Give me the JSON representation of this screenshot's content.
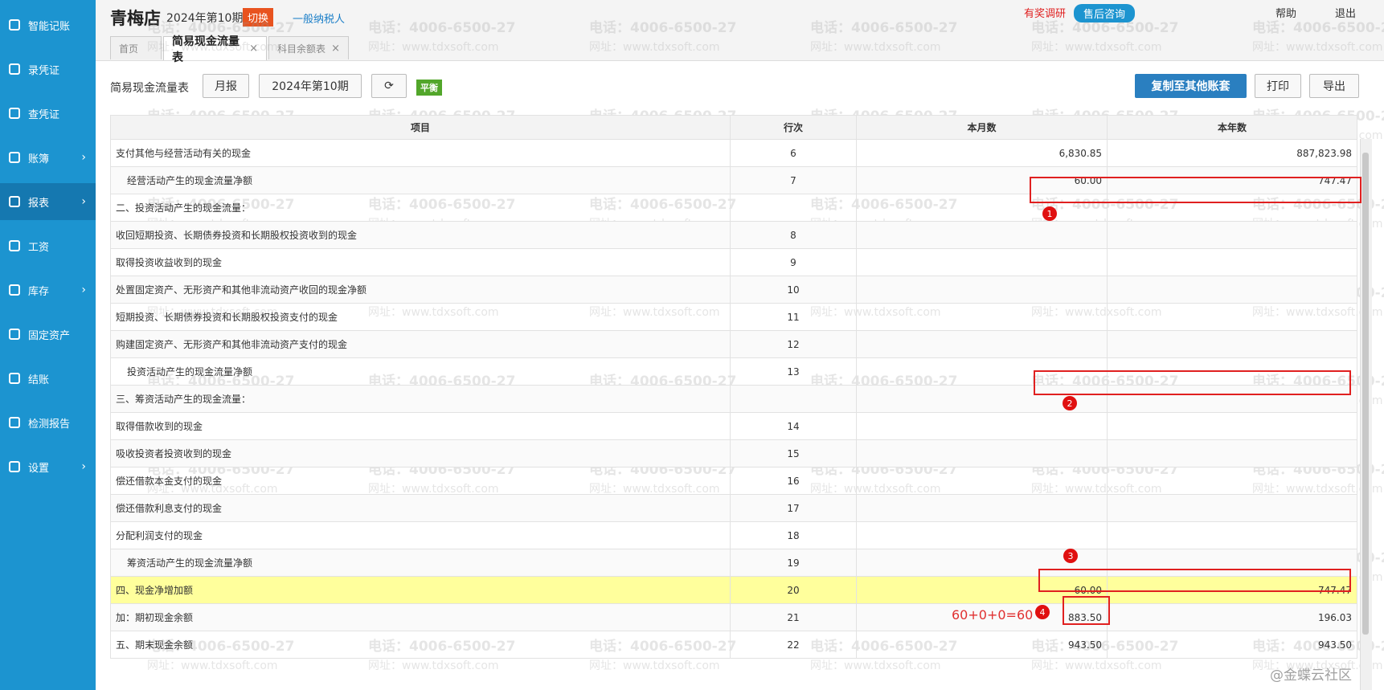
{
  "sidebar": {
    "items": [
      {
        "label": "智能记账"
      },
      {
        "label": "录凭证"
      },
      {
        "label": "查凭证"
      },
      {
        "label": "账簿",
        "expandable": true
      },
      {
        "label": "报表",
        "expandable": true,
        "active": true
      },
      {
        "label": "工资"
      },
      {
        "label": "库存",
        "expandable": true
      },
      {
        "label": "固定资产"
      },
      {
        "label": "结账"
      },
      {
        "label": "检测报告"
      },
      {
        "label": "设置",
        "expandable": true
      }
    ]
  },
  "header": {
    "company": "青梅店",
    "period": "2024年第10期",
    "switch": "切换",
    "taxpayer": "一般纳税人",
    "survey": "有奖调研",
    "support": "售后咨询",
    "help": "帮助",
    "exit": "退出"
  },
  "tabs": [
    {
      "label": "首页"
    },
    {
      "label": "简易现金流量表",
      "active": true,
      "closable": true
    },
    {
      "label": "科目余额表",
      "closable": true
    }
  ],
  "toolbar": {
    "title": "简易现金流量表",
    "report_type": "月报",
    "period": "2024年第10期",
    "status": "平衡",
    "copy": "复制至其他账套",
    "print": "打印",
    "export": "导出"
  },
  "table": {
    "columns": [
      "项目",
      "行次",
      "本月数",
      "本年数"
    ],
    "rows": [
      {
        "item": "支付其他与经营活动有关的现金",
        "line": 6,
        "month": "6,830.85",
        "year": "887,823.98"
      },
      {
        "item": "经营活动产生的现金流量净额",
        "line": 7,
        "month": "60.00",
        "year": "747.47",
        "indent": true
      },
      {
        "item": "二、投资活动产生的现金流量："
      },
      {
        "item": "收回短期投资、长期债券投资和长期股权投资收到的现金",
        "line": 8
      },
      {
        "item": "取得投资收益收到的现金",
        "line": 9
      },
      {
        "item": "处置固定资产、无形资产和其他非流动资产收回的现金净额",
        "line": 10
      },
      {
        "item": "短期投资、长期债券投资和长期股权投资支付的现金",
        "line": 11
      },
      {
        "item": "购建固定资产、无形资产和其他非流动资产支付的现金",
        "line": 12
      },
      {
        "item": "投资活动产生的现金流量净额",
        "line": 13,
        "indent": true
      },
      {
        "item": "三、筹资活动产生的现金流量："
      },
      {
        "item": "取得借款收到的现金",
        "line": 14
      },
      {
        "item": "吸收投资者投资收到的现金",
        "line": 15
      },
      {
        "item": "偿还借款本金支付的现金",
        "line": 16
      },
      {
        "item": "偿还借款利息支付的现金",
        "line": 17
      },
      {
        "item": "分配利润支付的现金",
        "line": 18
      },
      {
        "item": "筹资活动产生的现金流量净额",
        "line": 19,
        "indent": true
      },
      {
        "item": "四、现金净增加额",
        "line": 20,
        "month": "60.00",
        "year": "747.47",
        "highlight": true
      },
      {
        "item": "加：期初现金余额",
        "line": 21,
        "month": "883.50",
        "year": "196.03"
      },
      {
        "item": "五、期末现金余额",
        "line": 22,
        "month": "943.50",
        "year": "943.50"
      }
    ]
  },
  "annotations": {
    "markers": [
      1,
      2,
      3,
      4
    ],
    "formula": "60+0+0=60"
  },
  "watermark": {
    "phone": "电话：4006-6500-27",
    "site": "网址：www.tdxsoft.com"
  },
  "footer_watermark": "@金蝶云社区"
}
